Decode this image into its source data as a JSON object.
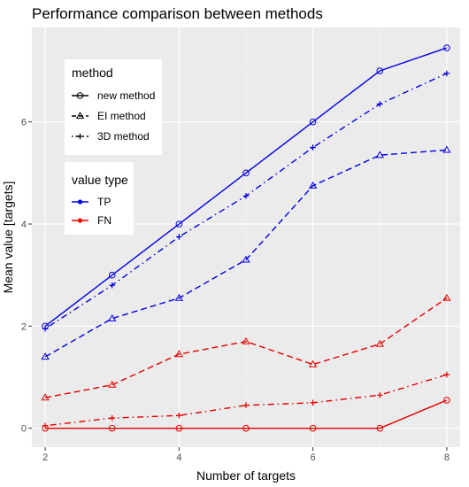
{
  "chart_data": {
    "type": "line",
    "title": "Performance comparison between methods",
    "xlabel": "Number of targets",
    "ylabel": "Mean value [targets]",
    "xlim": [
      1.8,
      8.2
    ],
    "ylim": [
      -0.37,
      7.85
    ],
    "x_ticks": [
      2,
      4,
      6,
      8
    ],
    "x_minor_ticks": [
      3,
      5,
      7
    ],
    "y_ticks": [
      0,
      2,
      4,
      6
    ],
    "y_minor_ticks": [
      1,
      3,
      5,
      7
    ],
    "x": [
      2,
      3,
      4,
      5,
      6,
      7,
      8
    ],
    "grid": true,
    "legend_position": "top-left",
    "colors": {
      "TP": "#0000e6",
      "FN": "#e60000"
    },
    "legend_method": {
      "title": "method",
      "entries": [
        {
          "label": "new method",
          "linetype": "solid",
          "marker": "circle"
        },
        {
          "label": "EI method",
          "linetype": "dashed",
          "marker": "triangle"
        },
        {
          "label": "3D method",
          "linetype": "dotdash",
          "marker": "plus"
        }
      ]
    },
    "legend_value_type": {
      "title": "value type",
      "entries": [
        {
          "label": "TP",
          "color": "#0000e6"
        },
        {
          "label": "FN",
          "color": "#e60000"
        }
      ]
    },
    "series": [
      {
        "method": "new method",
        "value_type": "TP",
        "linetype": "solid",
        "marker": "circle",
        "color": "#0000e6",
        "values": [
          2.0,
          3.0,
          4.0,
          5.0,
          6.0,
          7.0,
          7.45
        ]
      },
      {
        "method": "EI method",
        "value_type": "TP",
        "linetype": "dashed",
        "marker": "triangle",
        "color": "#0000e6",
        "values": [
          1.4,
          2.15,
          2.55,
          3.3,
          4.75,
          5.35,
          5.45
        ]
      },
      {
        "method": "3D method",
        "value_type": "TP",
        "linetype": "dotdash",
        "marker": "plus",
        "color": "#0000e6",
        "values": [
          1.95,
          2.8,
          3.75,
          4.55,
          5.5,
          6.35,
          6.95
        ]
      },
      {
        "method": "new method",
        "value_type": "FN",
        "linetype": "solid",
        "marker": "circle",
        "color": "#e60000",
        "values": [
          0.0,
          0.0,
          0.0,
          0.0,
          0.0,
          0.0,
          0.55
        ]
      },
      {
        "method": "EI method",
        "value_type": "FN",
        "linetype": "dashed",
        "marker": "triangle",
        "color": "#e60000",
        "values": [
          0.6,
          0.85,
          1.45,
          1.7,
          1.25,
          1.65,
          2.55
        ]
      },
      {
        "method": "3D method",
        "value_type": "FN",
        "linetype": "dotdash",
        "marker": "plus",
        "color": "#e60000",
        "values": [
          0.05,
          0.2,
          0.25,
          0.45,
          0.5,
          0.65,
          1.05
        ]
      }
    ]
  }
}
